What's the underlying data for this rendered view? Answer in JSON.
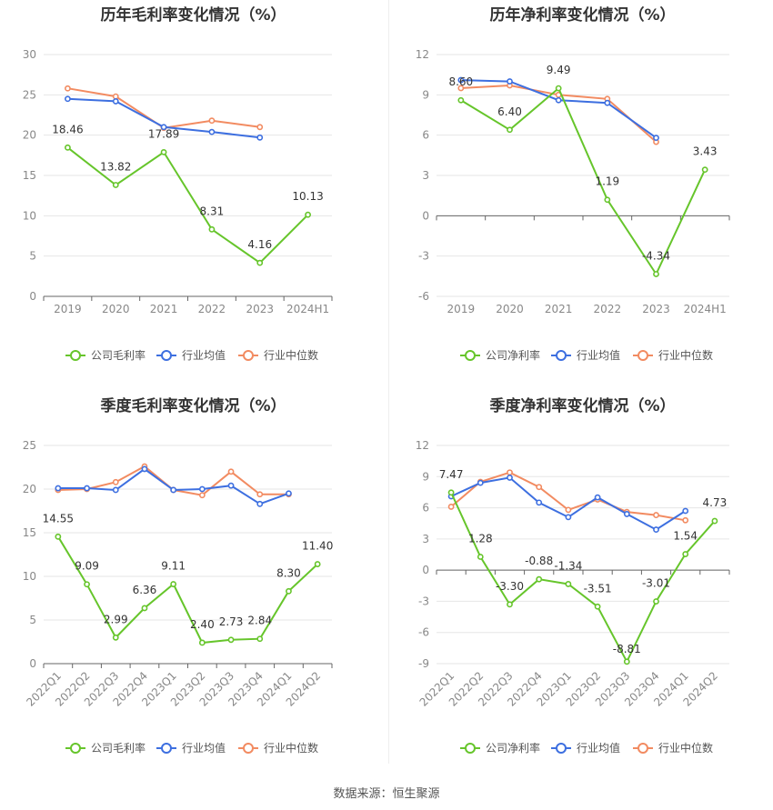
{
  "source": "数据来源：恒生聚源",
  "legend_labels": [
    "公司毛利率",
    "行业均值",
    "行业中位数"
  ],
  "legend_labels_net": [
    "公司净利率",
    "行业均值",
    "行业中位数"
  ],
  "colors": {
    "company": "#66c52b",
    "avg": "#3d6fe0",
    "median": "#f28b61"
  },
  "chart_data": [
    {
      "type": "line",
      "title": "历年毛利率变化情况（%）",
      "categories": [
        "2019",
        "2020",
        "2021",
        "2022",
        "2023",
        "2024H1"
      ],
      "ylim": [
        0,
        30
      ],
      "yticks": [
        "0",
        "5",
        "10",
        "15",
        "20",
        "25",
        "30"
      ],
      "series": [
        {
          "name": "公司毛利率",
          "values": [
            18.46,
            13.82,
            17.89,
            8.31,
            4.16,
            10.13
          ],
          "labels": [
            "18.46",
            "13.82",
            "17.89",
            "8.31",
            "4.16",
            "10.13"
          ]
        },
        {
          "name": "行业均值",
          "values": [
            24.5,
            24.2,
            21.0,
            20.4,
            19.7,
            null
          ]
        },
        {
          "name": "行业中位数",
          "values": [
            25.8,
            24.8,
            20.9,
            21.8,
            21.0,
            null
          ]
        }
      ]
    },
    {
      "type": "line",
      "title": "历年净利率变化情况（%）",
      "categories": [
        "2019",
        "2020",
        "2021",
        "2022",
        "2023",
        "2024H1"
      ],
      "ylim": [
        -6,
        12
      ],
      "yticks": [
        "-6",
        "-3",
        "0",
        "3",
        "6",
        "9",
        "12"
      ],
      "series": [
        {
          "name": "公司净利率",
          "values": [
            8.6,
            6.4,
            9.49,
            1.19,
            -4.34,
            3.43
          ],
          "labels": [
            "8.60",
            "6.40",
            "9.49",
            "1.19",
            "-4.34",
            "3.43"
          ]
        },
        {
          "name": "行业均值",
          "values": [
            10.1,
            10.0,
            8.6,
            8.4,
            5.8,
            null
          ]
        },
        {
          "name": "行业中位数",
          "values": [
            9.5,
            9.7,
            9.0,
            8.7,
            5.5,
            null
          ]
        }
      ]
    },
    {
      "type": "line",
      "title": "季度毛利率变化情况（%）",
      "categories": [
        "2022Q1",
        "2022Q2",
        "2022Q3",
        "2022Q4",
        "2023Q1",
        "2023Q2",
        "2023Q3",
        "2023Q4",
        "2024Q1",
        "2024Q2"
      ],
      "ylim": [
        0,
        25
      ],
      "yticks": [
        "0",
        "5",
        "10",
        "15",
        "20",
        "25"
      ],
      "series": [
        {
          "name": "公司毛利率",
          "values": [
            14.55,
            9.09,
            2.99,
            6.36,
            9.11,
            2.4,
            2.73,
            2.84,
            8.3,
            11.4
          ],
          "labels": [
            "14.55",
            "9.09",
            "2.99",
            "6.36",
            "9.11",
            "2.40",
            "2.73",
            "2.84",
            "8.30",
            "11.40"
          ]
        },
        {
          "name": "行业均值",
          "values": [
            20.1,
            20.1,
            19.9,
            22.3,
            19.9,
            20.0,
            20.4,
            18.3,
            19.5,
            null
          ]
        },
        {
          "name": "行业中位数",
          "values": [
            19.9,
            20.0,
            20.8,
            22.6,
            19.9,
            19.3,
            22.0,
            19.4,
            19.4,
            null
          ]
        }
      ]
    },
    {
      "type": "line",
      "title": "季度净利率变化情况（%）",
      "categories": [
        "2022Q1",
        "2022Q2",
        "2022Q3",
        "2022Q4",
        "2023Q1",
        "2023Q2",
        "2023Q3",
        "2023Q4",
        "2024Q1",
        "2024Q2"
      ],
      "ylim": [
        -9,
        12
      ],
      "yticks": [
        "-9",
        "-6",
        "-3",
        "0",
        "3",
        "6",
        "9",
        "12"
      ],
      "series": [
        {
          "name": "公司净利率",
          "values": [
            7.47,
            1.28,
            -3.3,
            -0.88,
            -1.34,
            -3.51,
            -8.81,
            -3.01,
            1.54,
            4.73
          ],
          "labels": [
            "7.47",
            "1.28",
            "-3.30",
            "-0.88",
            "-1.34",
            "-3.51",
            "-8.81",
            "-3.01",
            "1.54",
            "4.73"
          ]
        },
        {
          "name": "行业均值",
          "values": [
            7.1,
            8.4,
            8.9,
            6.5,
            5.1,
            7.0,
            5.4,
            3.9,
            5.7,
            null
          ]
        },
        {
          "name": "行业中位数",
          "values": [
            6.1,
            8.5,
            9.4,
            8.0,
            5.8,
            6.8,
            5.6,
            5.3,
            4.8,
            null
          ]
        }
      ]
    }
  ]
}
